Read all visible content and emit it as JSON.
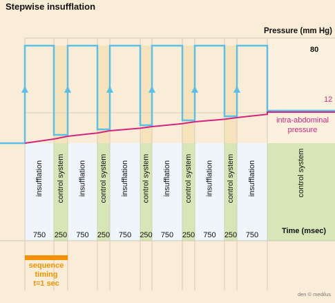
{
  "title": "Stepwise insufflation",
  "y_axis": {
    "title": "Pressure (mm Hg)",
    "max_label": "80",
    "iap_label": "12"
  },
  "iap_curve_label": "intra-abdominal pressure",
  "x_axis": {
    "title": "Time (msec)"
  },
  "phases": [
    {
      "label": "insufflation",
      "duration": "750"
    },
    {
      "label": "control system",
      "duration": "250"
    },
    {
      "label": "insufflation",
      "duration": "750"
    },
    {
      "label": "control system",
      "duration": "250"
    },
    {
      "label": "insufflation",
      "duration": "750"
    },
    {
      "label": "control system",
      "duration": "250"
    },
    {
      "label": "insufflation",
      "duration": "750"
    },
    {
      "label": "control system",
      "duration": "250"
    },
    {
      "label": "insufflation",
      "duration": "750"
    },
    {
      "label": "control system",
      "duration": "250"
    },
    {
      "label": "insufflation",
      "duration": "750"
    },
    {
      "label": "control system",
      "duration": ""
    }
  ],
  "sequence_timing": {
    "line1": "sequence",
    "line2": "timing",
    "line3": "t=1 sec"
  },
  "credit": "den © medilus",
  "colors": {
    "background": "#f9edd7",
    "insufflation_band": "#eef6fc",
    "control_band": "#d7e6b6",
    "pressure_line": "#5bc0e8",
    "iap_line": "#d4237f",
    "timing_bar": "#f39200"
  }
}
